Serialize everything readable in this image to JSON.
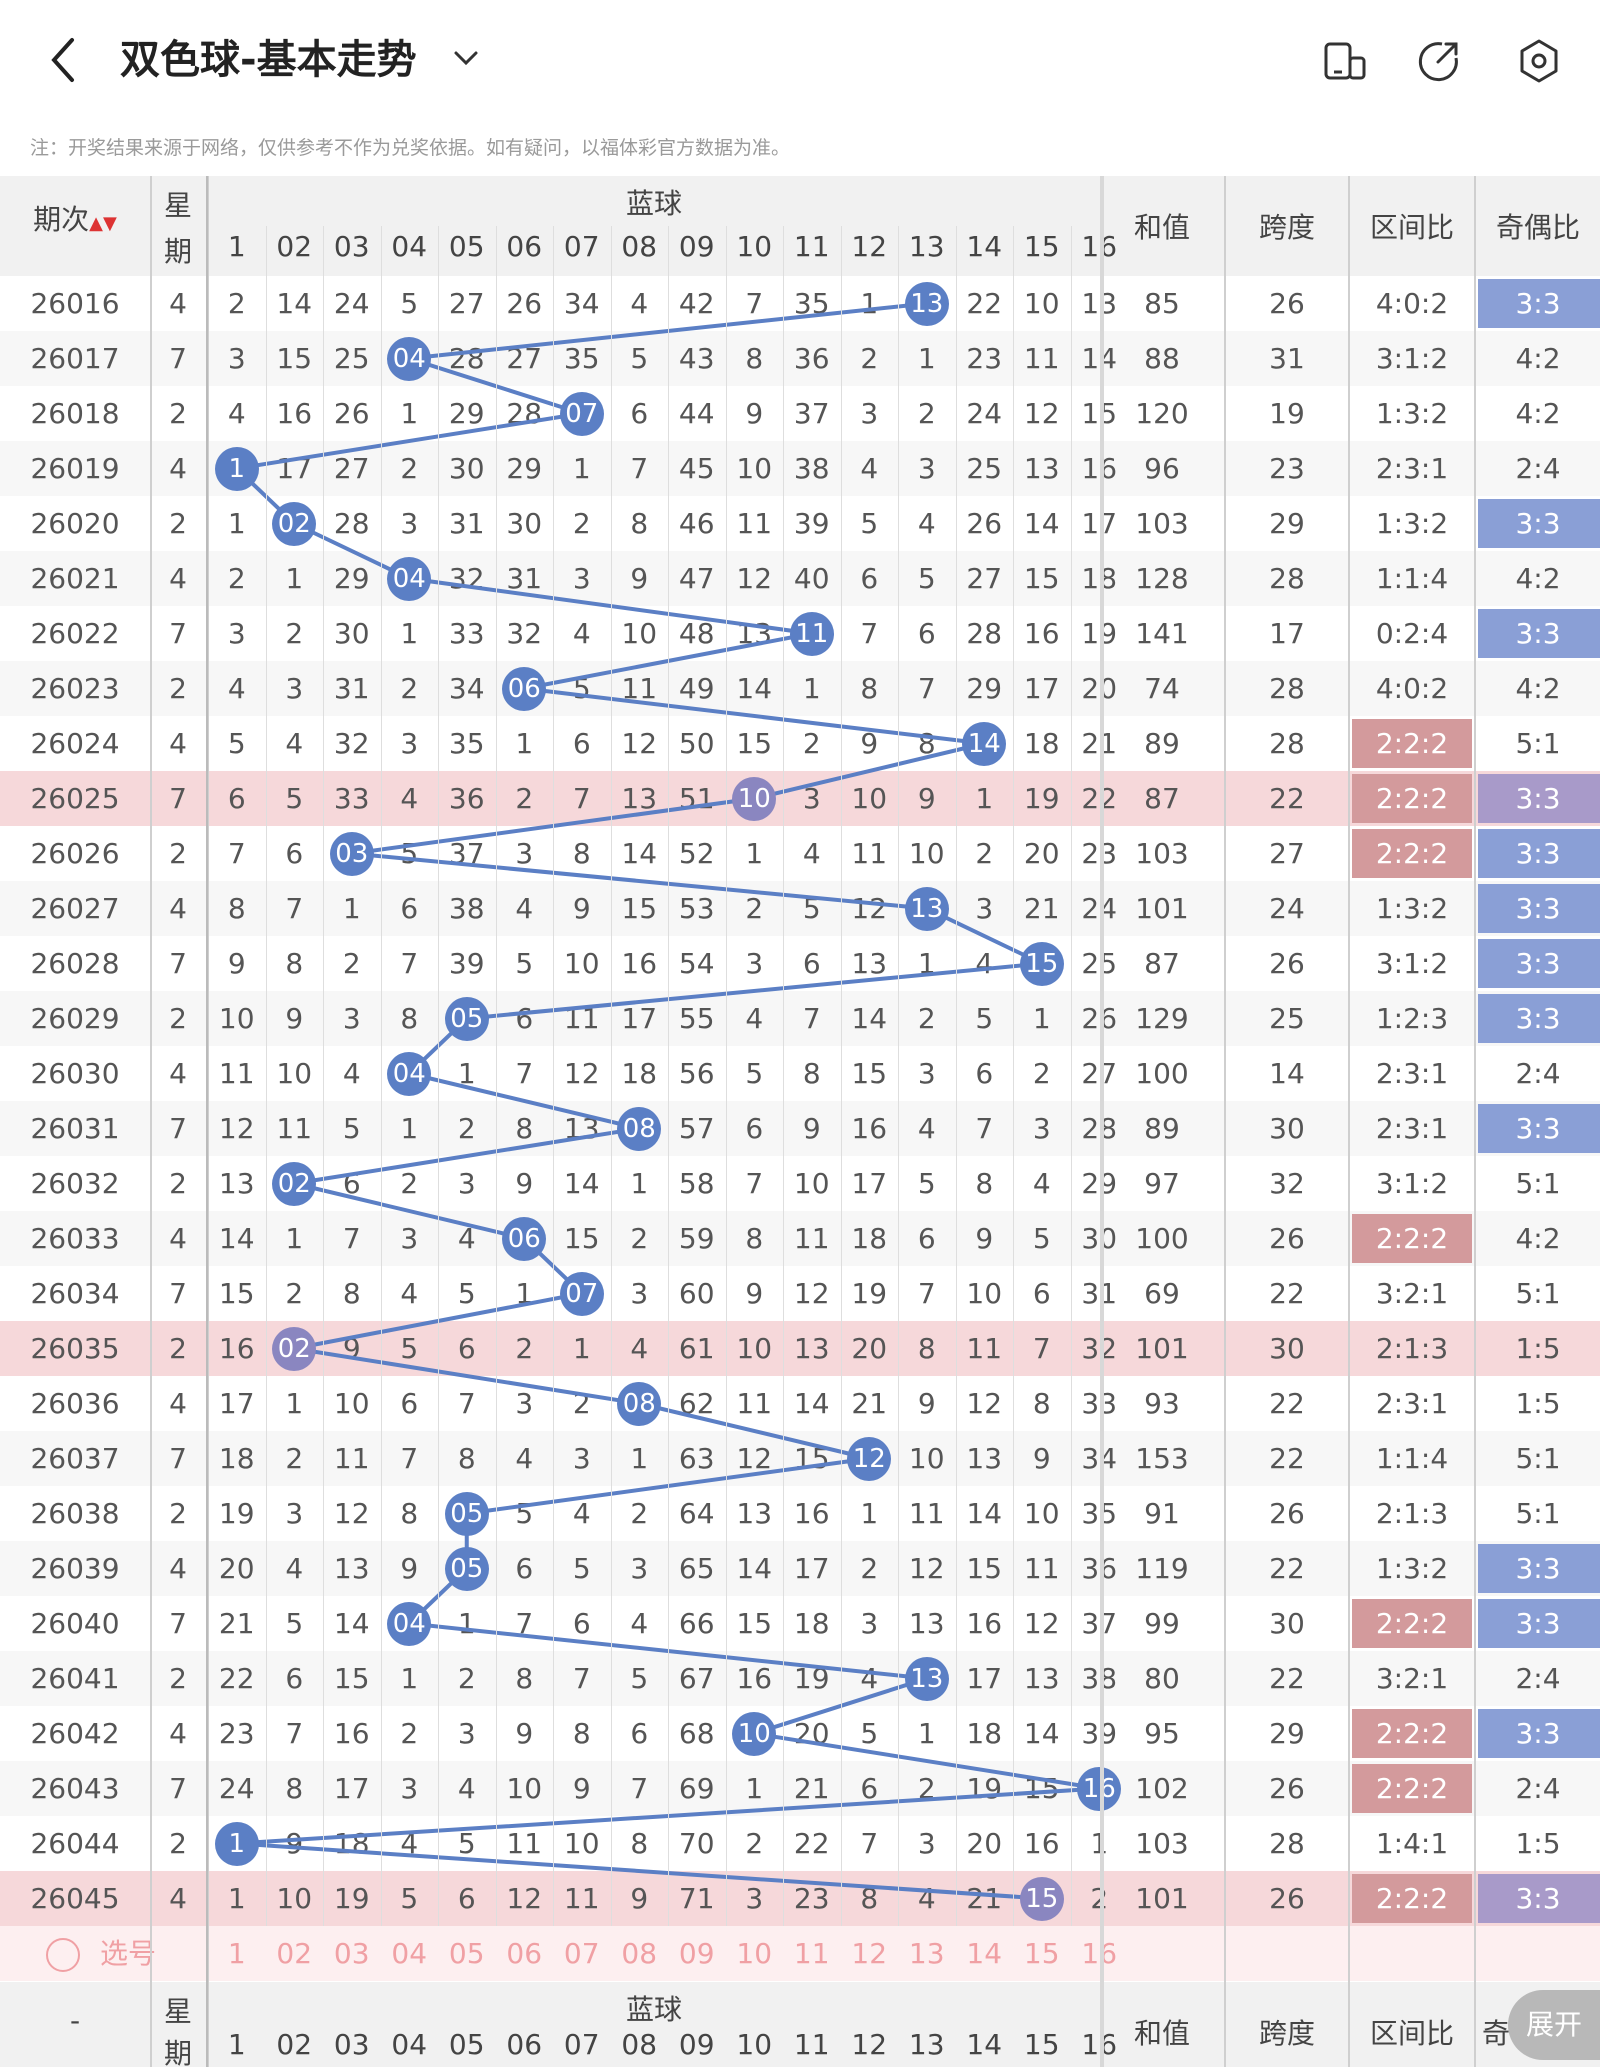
{
  "header": {
    "title": "双色球-基本走势"
  },
  "note": "注：开奖结果来源于网络，仅供参考不作为兑奖依据。如有疑问，以福体彩官方数据为准。",
  "columns": {
    "issue": "期次",
    "weekday_top": "星",
    "weekday_bottom": "期",
    "blue_group": "蓝球",
    "blue_numbers": [
      "1",
      "02",
      "03",
      "04",
      "05",
      "06",
      "07",
      "08",
      "09",
      "10",
      "11",
      "12",
      "13",
      "14",
      "15",
      "16"
    ],
    "sum": "和值",
    "span": "跨度",
    "zone_ratio": "区间比",
    "odd_even": "奇偶比"
  },
  "rows": [
    {
      "issue": "26016",
      "wd": "4",
      "cells": [
        "2",
        "14",
        "24",
        "5",
        "27",
        "26",
        "34",
        "4",
        "42",
        "7",
        "35",
        "1",
        "13",
        "22",
        "10",
        "13"
      ],
      "hit": 13,
      "sum": "85",
      "span": "26",
      "zone": "4:0:2",
      "oe": "3:3",
      "zt": "",
      "ot": "blue",
      "hl": false
    },
    {
      "issue": "26017",
      "wd": "7",
      "cells": [
        "3",
        "15",
        "25",
        "04",
        "28",
        "27",
        "35",
        "5",
        "43",
        "8",
        "36",
        "2",
        "1",
        "23",
        "11",
        "14"
      ],
      "hit": 4,
      "sum": "88",
      "span": "31",
      "zone": "3:1:2",
      "oe": "4:2",
      "zt": "",
      "ot": "",
      "hl": false
    },
    {
      "issue": "26018",
      "wd": "2",
      "cells": [
        "4",
        "16",
        "26",
        "1",
        "29",
        "28",
        "07",
        "6",
        "44",
        "9",
        "37",
        "3",
        "2",
        "24",
        "12",
        "15"
      ],
      "hit": 7,
      "sum": "120",
      "span": "19",
      "zone": "1:3:2",
      "oe": "4:2",
      "zt": "",
      "ot": "",
      "hl": false
    },
    {
      "issue": "26019",
      "wd": "4",
      "cells": [
        "1",
        "17",
        "27",
        "2",
        "30",
        "29",
        "1",
        "7",
        "45",
        "10",
        "38",
        "4",
        "3",
        "25",
        "13",
        "16"
      ],
      "hit": 1,
      "sum": "96",
      "span": "23",
      "zone": "2:3:1",
      "oe": "2:4",
      "zt": "",
      "ot": "",
      "hl": false
    },
    {
      "issue": "26020",
      "wd": "2",
      "cells": [
        "1",
        "02",
        "28",
        "3",
        "31",
        "30",
        "2",
        "8",
        "46",
        "11",
        "39",
        "5",
        "4",
        "26",
        "14",
        "17"
      ],
      "hit": 2,
      "sum": "103",
      "span": "29",
      "zone": "1:3:2",
      "oe": "3:3",
      "zt": "",
      "ot": "blue",
      "hl": false
    },
    {
      "issue": "26021",
      "wd": "4",
      "cells": [
        "2",
        "1",
        "29",
        "04",
        "32",
        "31",
        "3",
        "9",
        "47",
        "12",
        "40",
        "6",
        "5",
        "27",
        "15",
        "18"
      ],
      "hit": 4,
      "sum": "128",
      "span": "28",
      "zone": "1:1:4",
      "oe": "4:2",
      "zt": "",
      "ot": "",
      "hl": false
    },
    {
      "issue": "26022",
      "wd": "7",
      "cells": [
        "3",
        "2",
        "30",
        "1",
        "33",
        "32",
        "4",
        "10",
        "48",
        "13",
        "11",
        "7",
        "6",
        "28",
        "16",
        "19"
      ],
      "hit": 11,
      "sum": "141",
      "span": "17",
      "zone": "0:2:4",
      "oe": "3:3",
      "zt": "",
      "ot": "blue",
      "hl": false
    },
    {
      "issue": "26023",
      "wd": "2",
      "cells": [
        "4",
        "3",
        "31",
        "2",
        "34",
        "06",
        "5",
        "11",
        "49",
        "14",
        "1",
        "8",
        "7",
        "29",
        "17",
        "20"
      ],
      "hit": 6,
      "sum": "74",
      "span": "28",
      "zone": "4:0:2",
      "oe": "4:2",
      "zt": "",
      "ot": "",
      "hl": false
    },
    {
      "issue": "26024",
      "wd": "4",
      "cells": [
        "5",
        "4",
        "32",
        "3",
        "35",
        "1",
        "6",
        "12",
        "50",
        "15",
        "2",
        "9",
        "8",
        "14",
        "18",
        "21"
      ],
      "hit": 14,
      "sum": "89",
      "span": "28",
      "zone": "2:2:2",
      "oe": "5:1",
      "zt": "red",
      "ot": "",
      "hl": false
    },
    {
      "issue": "26025",
      "wd": "7",
      "cells": [
        "6",
        "5",
        "33",
        "4",
        "36",
        "2",
        "7",
        "13",
        "51",
        "10",
        "3",
        "10",
        "9",
        "1",
        "19",
        "22"
      ],
      "hit": 10,
      "sum": "87",
      "span": "22",
      "zone": "2:2:2",
      "oe": "3:3",
      "zt": "red",
      "ot": "purple",
      "hl": true
    },
    {
      "issue": "26026",
      "wd": "2",
      "cells": [
        "7",
        "6",
        "03",
        "5",
        "37",
        "3",
        "8",
        "14",
        "52",
        "1",
        "4",
        "11",
        "10",
        "2",
        "20",
        "23"
      ],
      "hit": 3,
      "sum": "103",
      "span": "27",
      "zone": "2:2:2",
      "oe": "3:3",
      "zt": "red",
      "ot": "blue",
      "hl": false
    },
    {
      "issue": "26027",
      "wd": "4",
      "cells": [
        "8",
        "7",
        "1",
        "6",
        "38",
        "4",
        "9",
        "15",
        "53",
        "2",
        "5",
        "12",
        "13",
        "3",
        "21",
        "24"
      ],
      "hit": 13,
      "sum": "101",
      "span": "24",
      "zone": "1:3:2",
      "oe": "3:3",
      "zt": "",
      "ot": "blue",
      "hl": false
    },
    {
      "issue": "26028",
      "wd": "7",
      "cells": [
        "9",
        "8",
        "2",
        "7",
        "39",
        "5",
        "10",
        "16",
        "54",
        "3",
        "6",
        "13",
        "1",
        "4",
        "15",
        "25"
      ],
      "hit": 15,
      "sum": "87",
      "span": "26",
      "zone": "3:1:2",
      "oe": "3:3",
      "zt": "",
      "ot": "blue",
      "hl": false
    },
    {
      "issue": "26029",
      "wd": "2",
      "cells": [
        "10",
        "9",
        "3",
        "8",
        "05",
        "6",
        "11",
        "17",
        "55",
        "4",
        "7",
        "14",
        "2",
        "5",
        "1",
        "26"
      ],
      "hit": 5,
      "sum": "129",
      "span": "25",
      "zone": "1:2:3",
      "oe": "3:3",
      "zt": "",
      "ot": "blue",
      "hl": false
    },
    {
      "issue": "26030",
      "wd": "4",
      "cells": [
        "11",
        "10",
        "4",
        "04",
        "1",
        "7",
        "12",
        "18",
        "56",
        "5",
        "8",
        "15",
        "3",
        "6",
        "2",
        "27"
      ],
      "hit": 4,
      "sum": "100",
      "span": "14",
      "zone": "2:3:1",
      "oe": "2:4",
      "zt": "",
      "ot": "",
      "hl": false
    },
    {
      "issue": "26031",
      "wd": "7",
      "cells": [
        "12",
        "11",
        "5",
        "1",
        "2",
        "8",
        "13",
        "08",
        "57",
        "6",
        "9",
        "16",
        "4",
        "7",
        "3",
        "28"
      ],
      "hit": 8,
      "sum": "89",
      "span": "30",
      "zone": "2:3:1",
      "oe": "3:3",
      "zt": "",
      "ot": "blue",
      "hl": false
    },
    {
      "issue": "26032",
      "wd": "2",
      "cells": [
        "13",
        "02",
        "6",
        "2",
        "3",
        "9",
        "14",
        "1",
        "58",
        "7",
        "10",
        "17",
        "5",
        "8",
        "4",
        "29"
      ],
      "hit": 2,
      "sum": "97",
      "span": "32",
      "zone": "3:1:2",
      "oe": "5:1",
      "zt": "",
      "ot": "",
      "hl": false
    },
    {
      "issue": "26033",
      "wd": "4",
      "cells": [
        "14",
        "1",
        "7",
        "3",
        "4",
        "06",
        "15",
        "2",
        "59",
        "8",
        "11",
        "18",
        "6",
        "9",
        "5",
        "30"
      ],
      "hit": 6,
      "sum": "100",
      "span": "26",
      "zone": "2:2:2",
      "oe": "4:2",
      "zt": "red",
      "ot": "",
      "hl": false
    },
    {
      "issue": "26034",
      "wd": "7",
      "cells": [
        "15",
        "2",
        "8",
        "4",
        "5",
        "1",
        "07",
        "3",
        "60",
        "9",
        "12",
        "19",
        "7",
        "10",
        "6",
        "31"
      ],
      "hit": 7,
      "sum": "69",
      "span": "22",
      "zone": "3:2:1",
      "oe": "5:1",
      "zt": "",
      "ot": "",
      "hl": false
    },
    {
      "issue": "26035",
      "wd": "2",
      "cells": [
        "16",
        "02",
        "9",
        "5",
        "6",
        "2",
        "1",
        "4",
        "61",
        "10",
        "13",
        "20",
        "8",
        "11",
        "7",
        "32"
      ],
      "hit": 2,
      "sum": "101",
      "span": "30",
      "zone": "2:1:3",
      "oe": "1:5",
      "zt": "",
      "ot": "",
      "hl": true
    },
    {
      "issue": "26036",
      "wd": "4",
      "cells": [
        "17",
        "1",
        "10",
        "6",
        "7",
        "3",
        "2",
        "08",
        "62",
        "11",
        "14",
        "21",
        "9",
        "12",
        "8",
        "33"
      ],
      "hit": 8,
      "sum": "93",
      "span": "22",
      "zone": "2:3:1",
      "oe": "1:5",
      "zt": "",
      "ot": "",
      "hl": false
    },
    {
      "issue": "26037",
      "wd": "7",
      "cells": [
        "18",
        "2",
        "11",
        "7",
        "8",
        "4",
        "3",
        "1",
        "63",
        "12",
        "15",
        "12",
        "10",
        "13",
        "9",
        "34"
      ],
      "hit": 12,
      "sum": "153",
      "span": "22",
      "zone": "1:1:4",
      "oe": "5:1",
      "zt": "",
      "ot": "",
      "hl": false
    },
    {
      "issue": "26038",
      "wd": "2",
      "cells": [
        "19",
        "3",
        "12",
        "8",
        "05",
        "5",
        "4",
        "2",
        "64",
        "13",
        "16",
        "1",
        "11",
        "14",
        "10",
        "35"
      ],
      "hit": 5,
      "sum": "91",
      "span": "26",
      "zone": "2:1:3",
      "oe": "5:1",
      "zt": "",
      "ot": "",
      "hl": false
    },
    {
      "issue": "26039",
      "wd": "4",
      "cells": [
        "20",
        "4",
        "13",
        "9",
        "05",
        "6",
        "5",
        "3",
        "65",
        "14",
        "17",
        "2",
        "12",
        "15",
        "11",
        "36"
      ],
      "hit": 5,
      "sum": "119",
      "span": "22",
      "zone": "1:3:2",
      "oe": "3:3",
      "zt": "",
      "ot": "blue",
      "hl": false
    },
    {
      "issue": "26040",
      "wd": "7",
      "cells": [
        "21",
        "5",
        "14",
        "04",
        "1",
        "7",
        "6",
        "4",
        "66",
        "15",
        "18",
        "3",
        "13",
        "16",
        "12",
        "37"
      ],
      "hit": 4,
      "sum": "99",
      "span": "30",
      "zone": "2:2:2",
      "oe": "3:3",
      "zt": "red",
      "ot": "blue",
      "hl": false
    },
    {
      "issue": "26041",
      "wd": "2",
      "cells": [
        "22",
        "6",
        "15",
        "1",
        "2",
        "8",
        "7",
        "5",
        "67",
        "16",
        "19",
        "4",
        "13",
        "17",
        "13",
        "38"
      ],
      "hit": 13,
      "sum": "80",
      "span": "22",
      "zone": "3:2:1",
      "oe": "2:4",
      "zt": "",
      "ot": "",
      "hl": false
    },
    {
      "issue": "26042",
      "wd": "4",
      "cells": [
        "23",
        "7",
        "16",
        "2",
        "3",
        "9",
        "8",
        "6",
        "68",
        "10",
        "20",
        "5",
        "1",
        "18",
        "14",
        "39"
      ],
      "hit": 10,
      "sum": "95",
      "span": "29",
      "zone": "2:2:2",
      "oe": "3:3",
      "zt": "red",
      "ot": "blue",
      "hl": false
    },
    {
      "issue": "26043",
      "wd": "7",
      "cells": [
        "24",
        "8",
        "17",
        "3",
        "4",
        "10",
        "9",
        "7",
        "69",
        "1",
        "21",
        "6",
        "2",
        "19",
        "15",
        "16"
      ],
      "hit": 16,
      "sum": "102",
      "span": "26",
      "zone": "2:2:2",
      "oe": "2:4",
      "zt": "red",
      "ot": "",
      "hl": false
    },
    {
      "issue": "26044",
      "wd": "2",
      "cells": [
        "1",
        "9",
        "18",
        "4",
        "5",
        "11",
        "10",
        "8",
        "70",
        "2",
        "22",
        "7",
        "3",
        "20",
        "16",
        "1"
      ],
      "hit": 1,
      "sum": "103",
      "span": "28",
      "zone": "1:4:1",
      "oe": "1:5",
      "zt": "",
      "ot": "",
      "hl": false
    },
    {
      "issue": "26045",
      "wd": "4",
      "cells": [
        "1",
        "10",
        "19",
        "5",
        "6",
        "12",
        "11",
        "9",
        "71",
        "3",
        "23",
        "8",
        "4",
        "21",
        "15",
        "2"
      ],
      "hit": 15,
      "sum": "101",
      "span": "26",
      "zone": "2:2:2",
      "oe": "3:3",
      "zt": "red",
      "ot": "purple",
      "hl": true
    }
  ],
  "pick": {
    "label": "选号",
    "numbers": [
      "1",
      "02",
      "03",
      "04",
      "05",
      "06",
      "07",
      "08",
      "09",
      "10",
      "11",
      "12",
      "13",
      "14",
      "15",
      "16"
    ]
  },
  "footer_header": {
    "issue": "-",
    "weekday_top": "星",
    "weekday_bottom": "期",
    "blue_group": "蓝球",
    "sum": "和值",
    "span": "跨度",
    "zone_ratio": "区间比",
    "odd_even": "奇"
  },
  "expand_label": "展开",
  "colors": {
    "ball": "#5b7fc5",
    "highlight_row": "#f6d8da",
    "tag_red": "#d39a9c",
    "tag_blue": "#8a9fd6",
    "pick_text": "#f0a0a4"
  }
}
